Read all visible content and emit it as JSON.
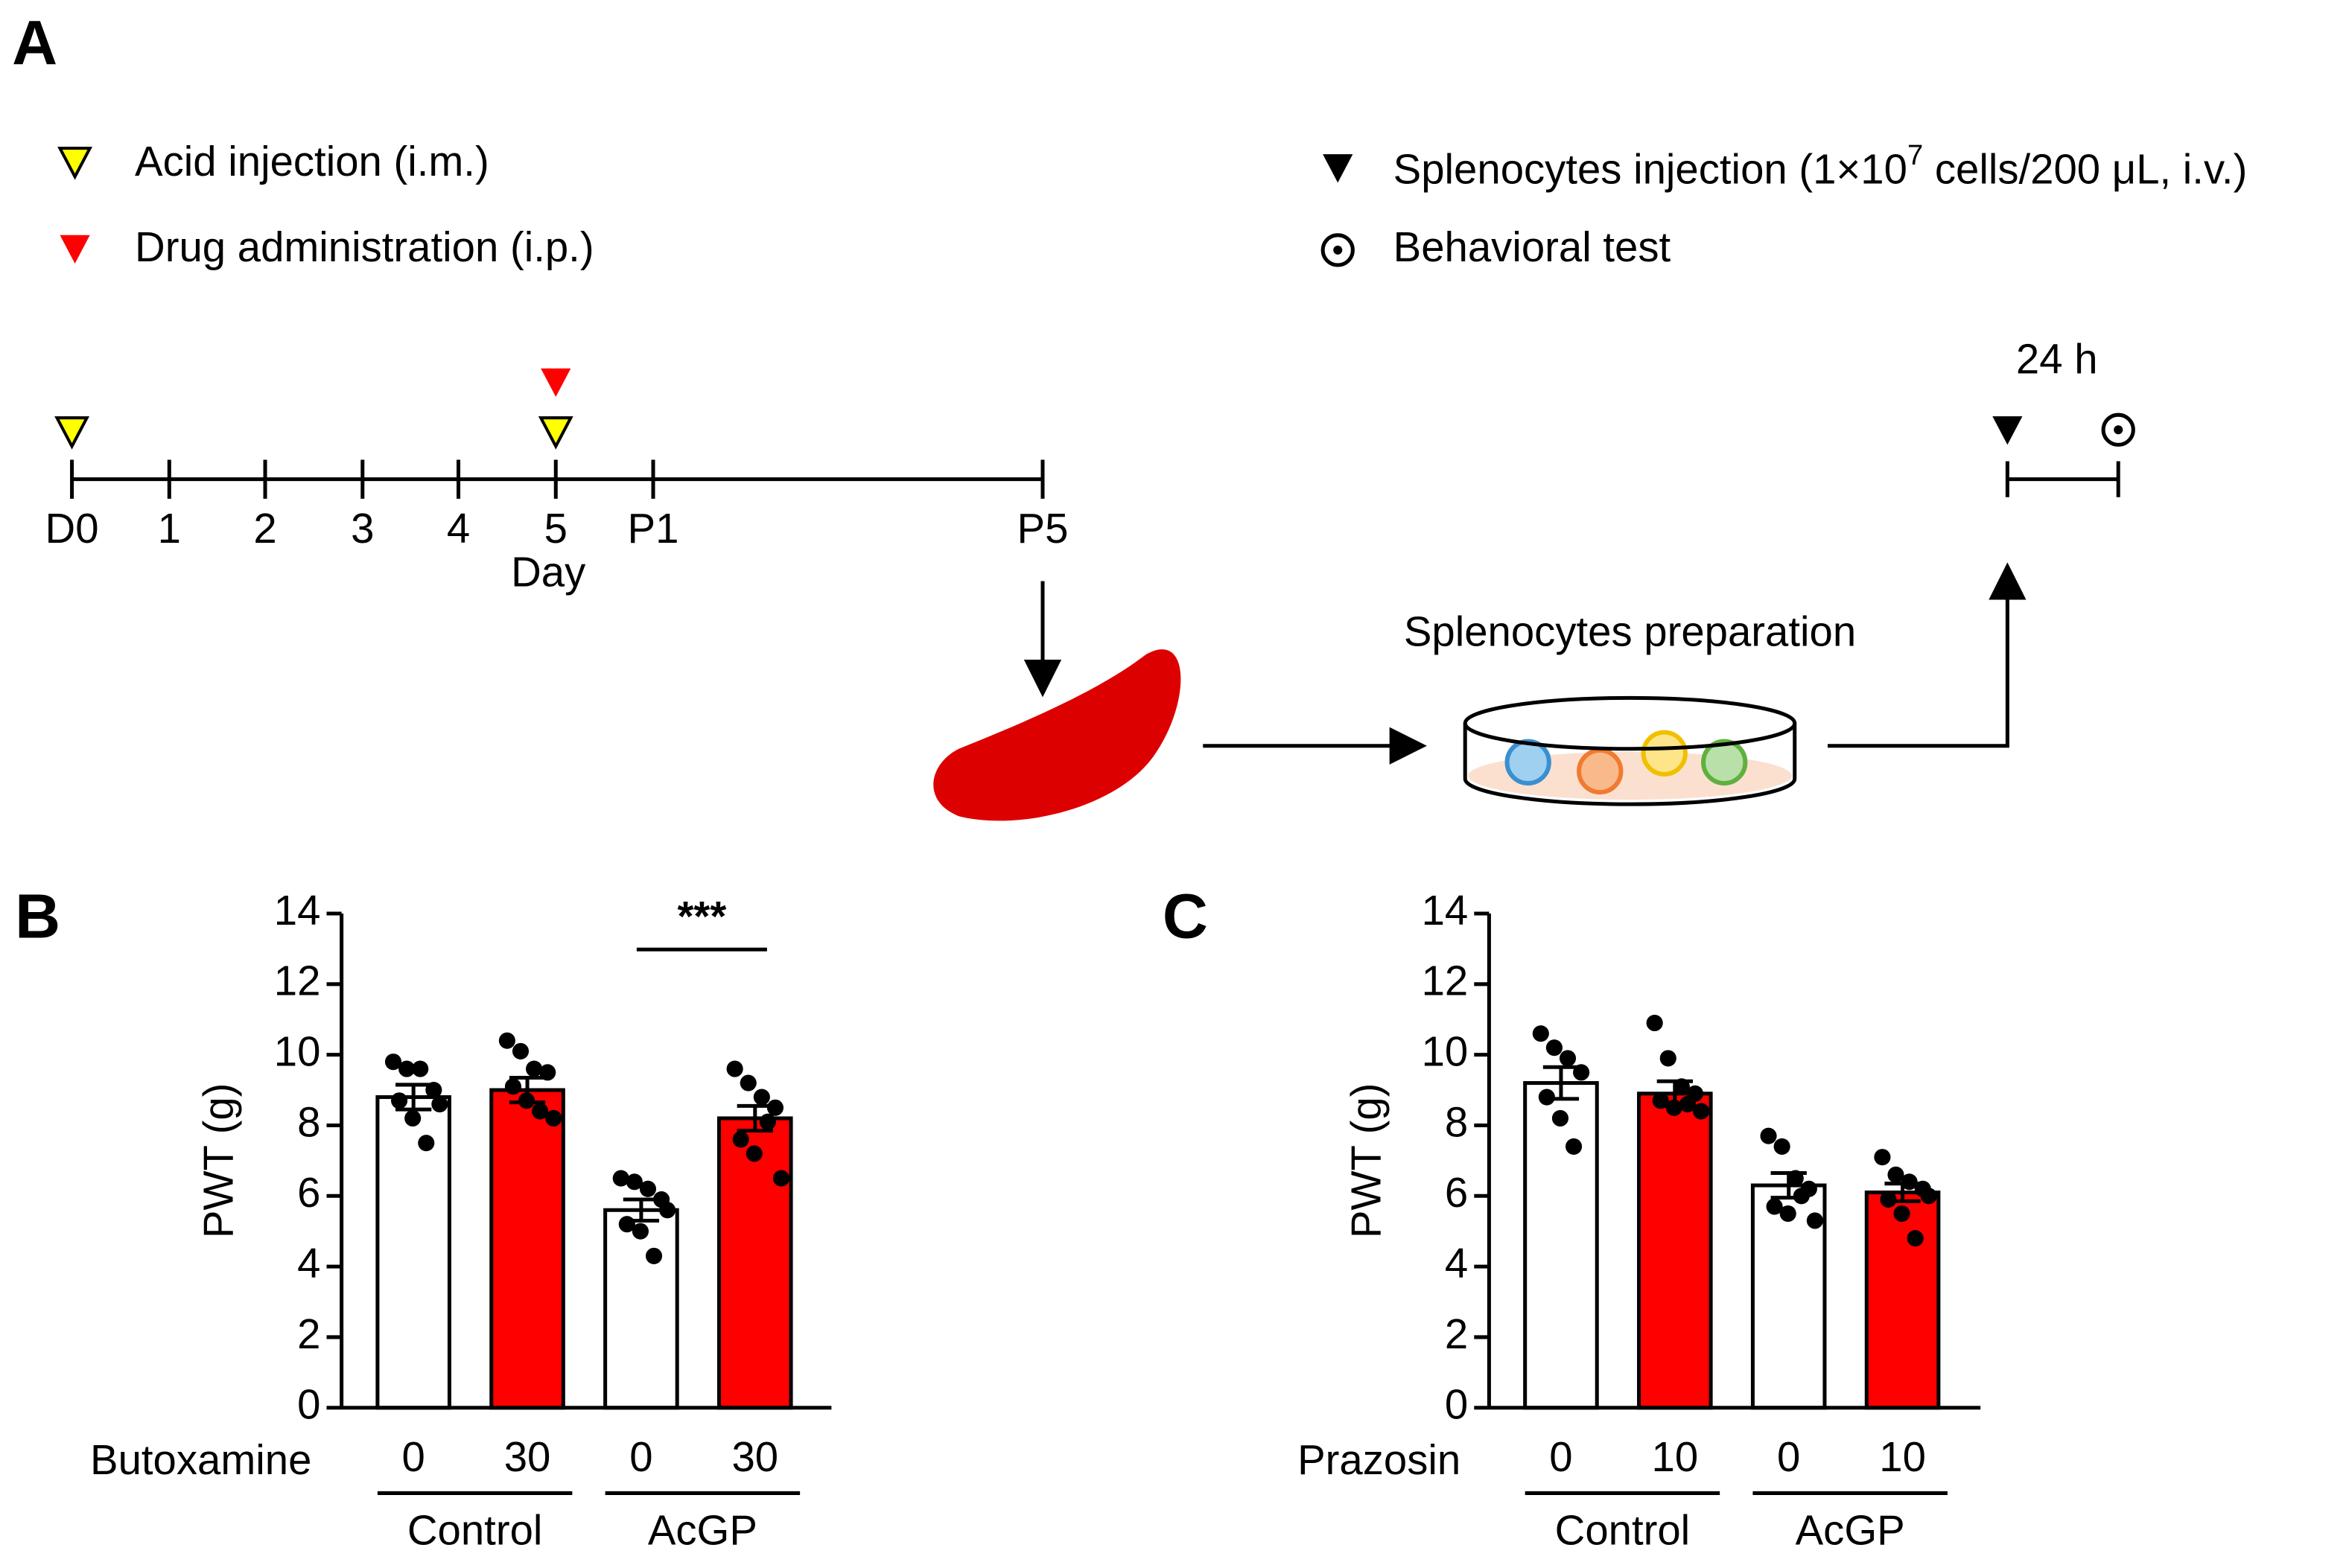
{
  "panel_a": {
    "panel_label": "A",
    "legend": {
      "acid": "Acid injection (i.m.)",
      "drug": "Drug administration (i.p.)",
      "splenocytes_pre": "Splenocytes injection (1×10",
      "splenocytes_sup": "7",
      "splenocytes_post": " cells/200 μL, i.v.)",
      "behavior": "Behavioral test"
    },
    "timeline": [
      "D0",
      "1",
      "2",
      "3",
      "4",
      "5",
      "P1",
      "P5"
    ],
    "timeline_axis": "Day",
    "interval": "24 h",
    "preparation": "Splenocytes preparation"
  },
  "chart_data": [
    {
      "type": "bar",
      "panel_label": "B",
      "xlabel": "Butoxamine",
      "ylabel": "PWT (g)",
      "categories": [
        "0",
        "30",
        "0",
        "30"
      ],
      "groups": [
        {
          "name": "Control",
          "span": [
            0,
            1
          ]
        },
        {
          "name": "AcGP",
          "span": [
            2,
            3
          ]
        }
      ],
      "values": [
        8.8,
        9.0,
        5.6,
        8.2
      ],
      "errors": [
        0.35,
        0.35,
        0.3,
        0.35
      ],
      "colors": [
        "#ffffff",
        "#ff0000",
        "#ffffff",
        "#ff0000"
      ],
      "points": [
        [
          9.8,
          9.6,
          9.6,
          9.0,
          8.7,
          8.2,
          7.5,
          8.6
        ],
        [
          10.4,
          10.1,
          9.6,
          9.5,
          9.1,
          8.7,
          8.4,
          8.2
        ],
        [
          6.5,
          6.4,
          6.2,
          5.9,
          5.2,
          5.0,
          4.3,
          5.6
        ],
        [
          9.6,
          9.2,
          8.8,
          8.5,
          7.6,
          7.2,
          8.1,
          6.5
        ]
      ],
      "annotations": [
        {
          "text": "***",
          "between": [
            2,
            3
          ]
        }
      ],
      "ylim": [
        0,
        14
      ],
      "yticks": [
        0,
        2,
        4,
        6,
        8,
        10,
        12,
        14
      ]
    },
    {
      "type": "bar",
      "panel_label": "C",
      "xlabel": "Prazosin",
      "ylabel": "PWT (g)",
      "categories": [
        "0",
        "10",
        "0",
        "10"
      ],
      "groups": [
        {
          "name": "Control",
          "span": [
            0,
            1
          ]
        },
        {
          "name": "AcGP",
          "span": [
            2,
            3
          ]
        }
      ],
      "values": [
        9.2,
        8.9,
        6.3,
        6.1
      ],
      "errors": [
        0.45,
        0.35,
        0.35,
        0.25
      ],
      "colors": [
        "#ffffff",
        "#ff0000",
        "#ffffff",
        "#ff0000"
      ],
      "points": [
        [
          10.6,
          10.2,
          9.9,
          9.5,
          8.8,
          8.2,
          7.4
        ],
        [
          10.9,
          9.9,
          9.1,
          8.9,
          8.7,
          8.5,
          8.6,
          8.4
        ],
        [
          7.7,
          7.4,
          6.5,
          6.2,
          5.7,
          5.5,
          6.0,
          5.3
        ],
        [
          7.1,
          6.6,
          6.4,
          6.2,
          5.9,
          5.5,
          4.8,
          6.0
        ]
      ],
      "annotations": [],
      "ylim": [
        0,
        14
      ],
      "yticks": [
        0,
        2,
        4,
        6,
        8,
        10,
        12,
        14
      ]
    }
  ]
}
